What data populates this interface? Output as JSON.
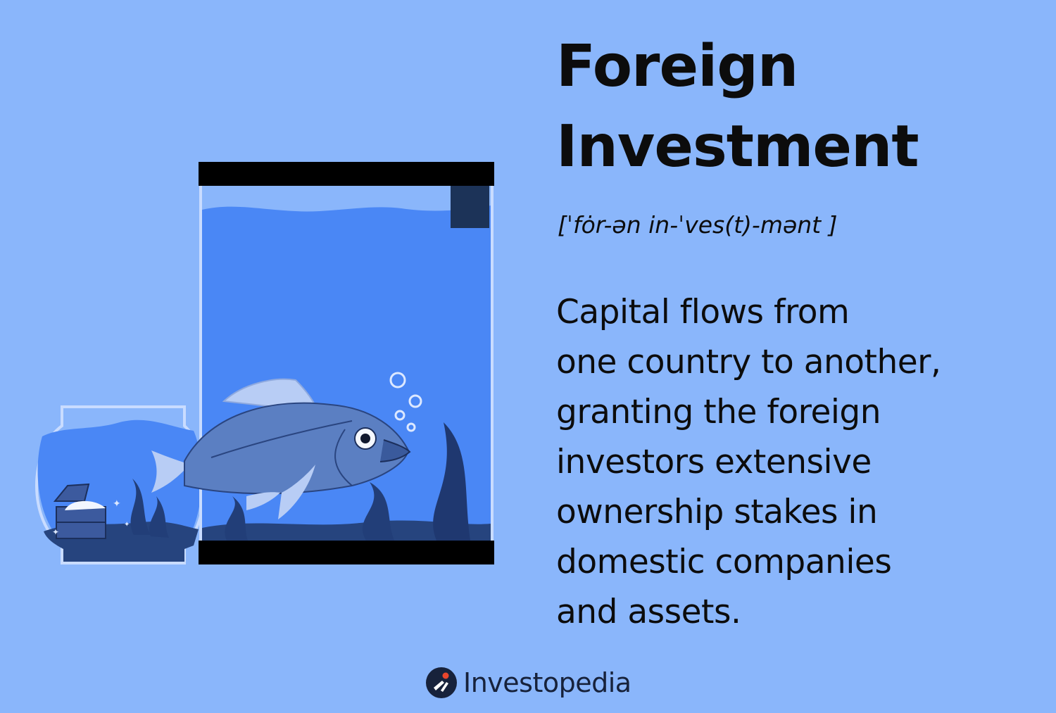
{
  "title_lines": [
    "Foreign",
    "Investment"
  ],
  "pronunciation": "[ˈfȯr-ən in-ˈves(t)-mənt ]",
  "definition_lines": [
    "Capital flows from",
    "one country to another,",
    "granting the foreign",
    "investors extensive",
    "ownership stakes in",
    "domestic companies",
    "and assets."
  ],
  "brand": {
    "name": "Investopedia",
    "logo_icon": "investopedia-logo-icon"
  },
  "colors": {
    "background": "#8ab6fb",
    "water": "#4a87f5",
    "fish": "#5b7fc2",
    "tank_frame": "#000000",
    "text": "#0c0c0c",
    "brand_accent": "#e8452c"
  }
}
